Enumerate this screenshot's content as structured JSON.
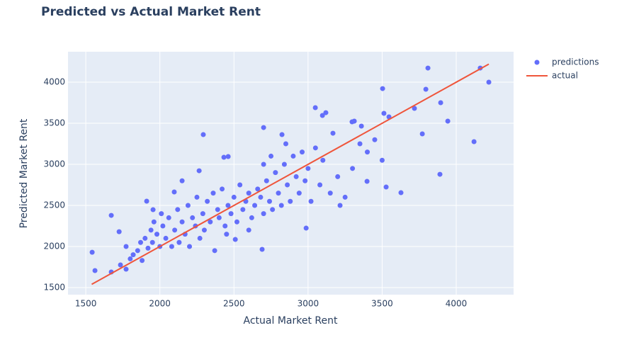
{
  "chart_data": {
    "type": "scatter",
    "title": "Predicted vs Actual Market Rent",
    "x_label": "Actual Market Rent",
    "y_label": "Predicted Market Rent",
    "xlim": [
      1380,
      4387
    ],
    "ylim": [
      1414,
      4371
    ],
    "xticks": [
      1500,
      2000,
      2500,
      3000,
      3500,
      4000
    ],
    "yticks": [
      1500,
      2000,
      2500,
      3000,
      3500,
      4000
    ],
    "grid": true,
    "legend": "right",
    "series": [
      {
        "name": "predictions",
        "color": "#636efa",
        "mode": "markers",
        "x": [
          1543,
          1562,
          1672,
          1672,
          1725,
          1734,
          1772,
          1772,
          1911,
          1954,
          2097,
          2293,
          2265,
          2432,
          2461,
          2700,
          2824,
          3049,
          3097,
          3120,
          3168,
          3297,
          3312,
          3360,
          3503,
          3512,
          3546,
          3718,
          3795,
          3809,
          3771,
          3895,
          3890,
          3943,
          4120,
          4162,
          4220,
          3527,
          3627,
          2987,
          2690,
          2509,
          3398,
          3216,
          1800,
          1820,
          1850,
          1870,
          1880,
          1900,
          1920,
          1940,
          1950,
          1960,
          1980,
          2000,
          2010,
          2020,
          2040,
          2060,
          2080,
          2100,
          2120,
          2130,
          2150,
          2170,
          2190,
          2200,
          2220,
          2240,
          2250,
          2270,
          2290,
          2300,
          2320,
          2340,
          2360,
          2370,
          2390,
          2400,
          2420,
          2440,
          2460,
          2480,
          2500,
          2520,
          2540,
          2560,
          2580,
          2600,
          2620,
          2640,
          2660,
          2680,
          2700,
          2720,
          2740,
          2760,
          2780,
          2800,
          2820,
          2840,
          2860,
          2880,
          2900,
          2920,
          2940,
          2960,
          2980,
          3000,
          3020,
          3050,
          3080,
          3100,
          3150,
          3200,
          3250,
          3300,
          3350,
          3400,
          3450,
          3500,
          2150,
          2700,
          2750,
          2850,
          2600,
          2450
        ],
        "values": [
          1930,
          1707,
          2379,
          1690,
          2180,
          1776,
          2000,
          1724,
          2552,
          2448,
          2664,
          3362,
          2922,
          3086,
          3095,
          3448,
          3362,
          3690,
          3595,
          3629,
          3379,
          3517,
          3526,
          3466,
          3922,
          3621,
          3578,
          3681,
          3914,
          4172,
          3371,
          3750,
          2879,
          3526,
          3276,
          4172,
          4000,
          2724,
          2655,
          2224,
          1966,
          2086,
          2793,
          2500,
          1850,
          1900,
          1950,
          2050,
          1830,
          2100,
          1980,
          2200,
          2050,
          2300,
          2150,
          2000,
          2400,
          2250,
          2100,
          2350,
          2000,
          2200,
          2450,
          2050,
          2300,
          2150,
          2500,
          2000,
          2350,
          2250,
          2600,
          2100,
          2400,
          2200,
          2550,
          2300,
          2650,
          1950,
          2450,
          2350,
          2700,
          2250,
          2500,
          2400,
          2600,
          2300,
          2750,
          2450,
          2550,
          2650,
          2350,
          2500,
          2700,
          2600,
          2400,
          2800,
          2550,
          2450,
          2900,
          2650,
          2500,
          3000,
          2750,
          2550,
          3100,
          2850,
          2650,
          3150,
          2800,
          2950,
          2550,
          3200,
          2750,
          3050,
          2650,
          2850,
          2600,
          2950,
          3250,
          3150,
          3300,
          3050,
          2800,
          3000,
          3100,
          3250,
          2200,
          2150
        ]
      },
      {
        "name": "actual",
        "color": "#ef553b",
        "mode": "lines",
        "x": [
          1540,
          4220
        ],
        "values": [
          1540,
          4220
        ]
      }
    ]
  }
}
